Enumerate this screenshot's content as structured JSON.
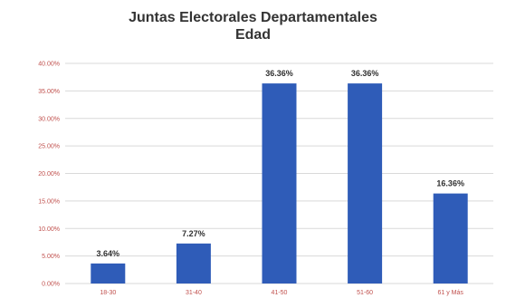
{
  "chart_data": {
    "type": "bar",
    "title_lines": [
      "Juntas Electorales Departamentales",
      "Edad"
    ],
    "categories": [
      "18-30",
      "31-40",
      "41-50",
      "51-60",
      "61 y Más"
    ],
    "values": [
      3.64,
      7.27,
      36.36,
      36.36,
      16.36
    ],
    "data_labels": [
      "3.64%",
      "7.27%",
      "36.36%",
      "36.36%",
      "16.36%"
    ],
    "ylim": [
      0,
      40
    ],
    "yticks": [
      0,
      5,
      10,
      15,
      20,
      25,
      30,
      35,
      40
    ],
    "ytick_labels": [
      "0.00%",
      "5.00%",
      "10.00%",
      "15.00%",
      "20.00%",
      "25.00%",
      "30.00%",
      "35.00%",
      "40.00%"
    ],
    "xlabel": "",
    "ylabel": "",
    "grid": true,
    "legend": "none",
    "bar_color": "#2f5cb8"
  }
}
